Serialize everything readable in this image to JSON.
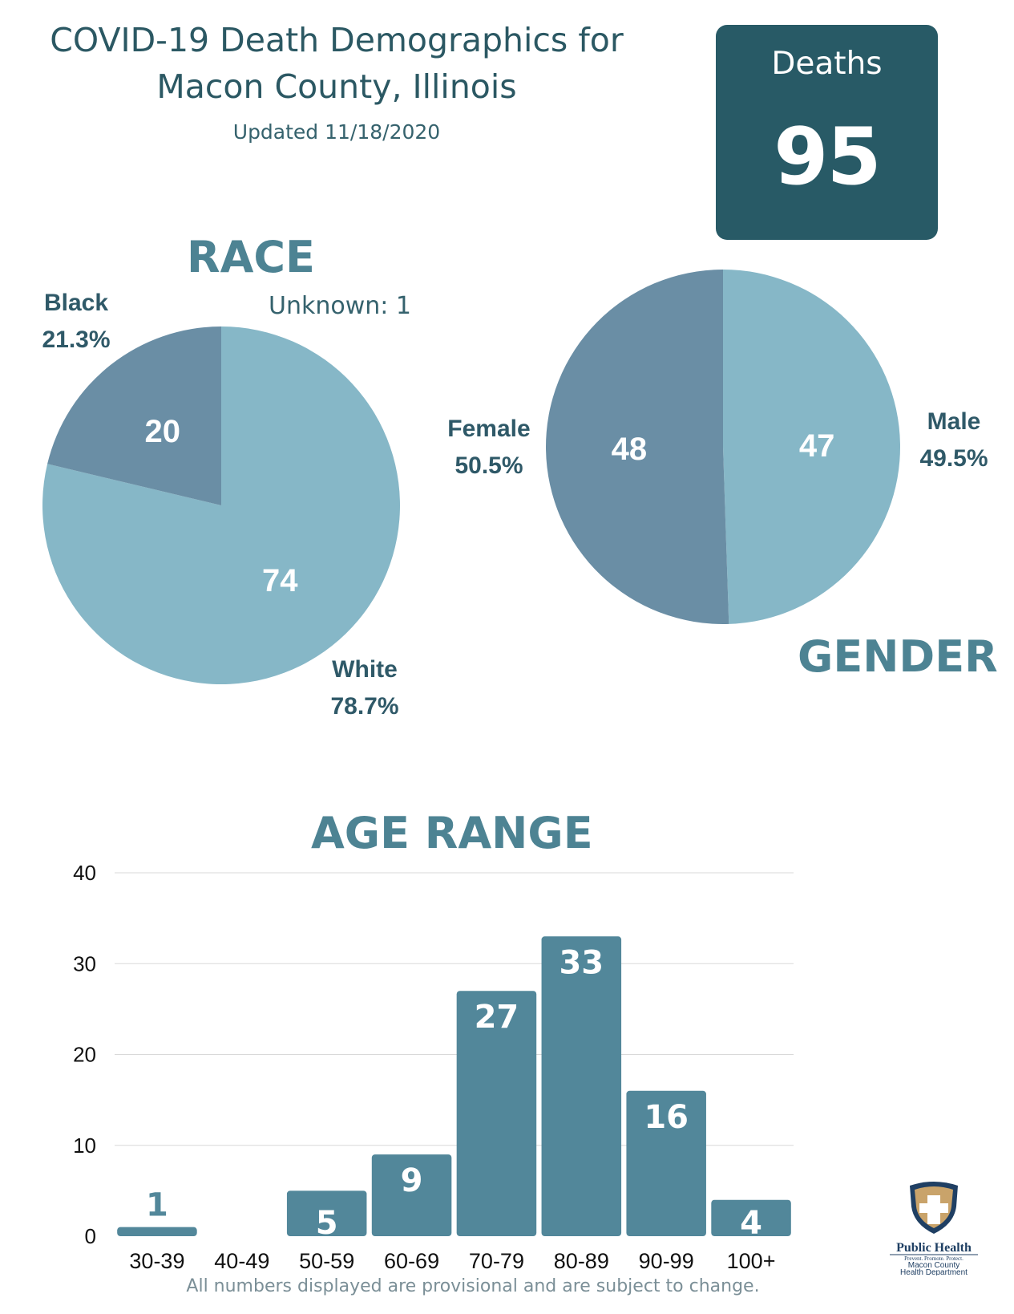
{
  "header": {
    "title_line1": "COVID-19 Death Demographics for",
    "title_line2": "Macon County, Illinois",
    "updated": "Updated 11/18/2020"
  },
  "deaths": {
    "label": "Deaths",
    "value": "95"
  },
  "race": {
    "heading": "RACE",
    "unknown": "Unknown: 1",
    "black_name": "Black",
    "black_pct": "21.3%",
    "white_name": "White",
    "white_pct": "78.7%"
  },
  "gender": {
    "heading": "GENDER",
    "female_name": "Female",
    "female_pct": "50.5%",
    "male_name": "Male",
    "male_pct": "49.5%"
  },
  "age": {
    "heading": "AGE RANGE"
  },
  "footnote": "All numbers displayed are provisional and are subject to change.",
  "logo": {
    "text": "Public Health",
    "tagline": "Prevent. Promote. Protect.",
    "org_line1": "Macon County",
    "org_line2": "Health Department"
  },
  "colors": {
    "light": "#86b7c7",
    "dark": "#6a8ea5",
    "bar": "#52879a",
    "header_box": "#285a66"
  },
  "chart_data": [
    {
      "type": "pie",
      "title": "RACE",
      "slices": [
        {
          "name": "White",
          "value": 74,
          "pct": "78.7%",
          "color": "light"
        },
        {
          "name": "Black",
          "value": 20,
          "pct": "21.3%",
          "color": "dark"
        }
      ],
      "annotation": "Unknown: 1"
    },
    {
      "type": "pie",
      "title": "GENDER",
      "slices": [
        {
          "name": "Male",
          "value": 47,
          "pct": "49.5%",
          "color": "light"
        },
        {
          "name": "Female",
          "value": 48,
          "pct": "50.5%",
          "color": "dark"
        }
      ]
    },
    {
      "type": "bar",
      "title": "AGE RANGE",
      "categories": [
        "30-39",
        "40-49",
        "50-59",
        "60-69",
        "70-79",
        "80-89",
        "90-99",
        "100+"
      ],
      "values": [
        1,
        0,
        5,
        9,
        27,
        33,
        16,
        4
      ],
      "ylim": [
        0,
        40
      ],
      "yticks": [
        0,
        10,
        20,
        30,
        40
      ],
      "grid": true
    }
  ]
}
